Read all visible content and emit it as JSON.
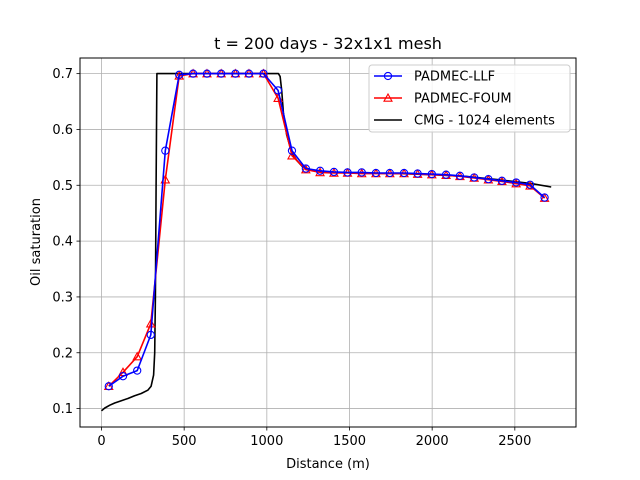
{
  "chart_data": {
    "type": "line",
    "title": "t = 200 days - 32x1x1 mesh",
    "xlabel": "Distance (m)",
    "ylabel": "Oil saturation",
    "xlim": [
      -130,
      2870
    ],
    "ylim": [
      0.067,
      0.728
    ],
    "xticks": [
      0,
      500,
      1000,
      1500,
      2000,
      2500
    ],
    "yticks": [
      0.1,
      0.2,
      0.3,
      0.4,
      0.5,
      0.6,
      0.7
    ],
    "xtick_labels": [
      "0",
      "500",
      "1000",
      "1500",
      "2000",
      "2500"
    ],
    "ytick_labels": [
      "0.1",
      "0.2",
      "0.3",
      "0.4",
      "0.5",
      "0.6",
      "0.7"
    ],
    "grid": true,
    "legend_position": "top-right",
    "series": [
      {
        "name": "PADMEC-LLF",
        "color": "#0000ff",
        "marker": "circle",
        "x": [
          44,
          130,
          216,
          298,
          386,
          470,
          554,
          638,
          724,
          810,
          892,
          980,
          1068,
          1152,
          1236,
          1322,
          1406,
          1488,
          1574,
          1660,
          1744,
          1830,
          1912,
          1998,
          2084,
          2168,
          2254,
          2340,
          2422,
          2508,
          2592,
          2680
        ],
        "y": [
          0.14,
          0.158,
          0.168,
          0.232,
          0.562,
          0.698,
          0.7,
          0.7,
          0.7,
          0.7,
          0.7,
          0.7,
          0.67,
          0.562,
          0.53,
          0.526,
          0.524,
          0.523,
          0.523,
          0.522,
          0.522,
          0.522,
          0.521,
          0.52,
          0.519,
          0.517,
          0.514,
          0.511,
          0.508,
          0.505,
          0.501,
          0.478
        ]
      },
      {
        "name": "PADMEC-FOUM",
        "color": "#ff0000",
        "marker": "triangle",
        "x": [
          44,
          130,
          216,
          298,
          386,
          470,
          554,
          638,
          724,
          810,
          892,
          980,
          1068,
          1152,
          1236,
          1322,
          1406,
          1488,
          1574,
          1660,
          1744,
          1830,
          1912,
          1998,
          2084,
          2168,
          2254,
          2340,
          2422,
          2508,
          2592,
          2680
        ],
        "y": [
          0.14,
          0.165,
          0.193,
          0.252,
          0.51,
          0.696,
          0.7,
          0.7,
          0.7,
          0.7,
          0.7,
          0.7,
          0.656,
          0.553,
          0.528,
          0.523,
          0.522,
          0.522,
          0.521,
          0.521,
          0.521,
          0.521,
          0.52,
          0.519,
          0.518,
          0.516,
          0.513,
          0.51,
          0.507,
          0.503,
          0.499,
          0.477
        ]
      },
      {
        "name": "CMG - 1024 elements",
        "color": "#000000",
        "marker": "none",
        "x": [
          0,
          20,
          50,
          80,
          120,
          160,
          200,
          240,
          280,
          300,
          315,
          322,
          326,
          330,
          335,
          400,
          600,
          800,
          1000,
          1050,
          1070,
          1080,
          1090,
          1100,
          1120,
          1150,
          1180,
          1220,
          1300,
          1400,
          1600,
          1800,
          2000,
          2200,
          2400,
          2600,
          2720
        ],
        "y": [
          0.096,
          0.101,
          0.106,
          0.11,
          0.114,
          0.118,
          0.123,
          0.127,
          0.133,
          0.14,
          0.16,
          0.2,
          0.3,
          0.5,
          0.7,
          0.7,
          0.7,
          0.7,
          0.7,
          0.7,
          0.7,
          0.695,
          0.67,
          0.63,
          0.59,
          0.56,
          0.545,
          0.532,
          0.525,
          0.523,
          0.522,
          0.521,
          0.519,
          0.516,
          0.51,
          0.503,
          0.497
        ]
      }
    ]
  }
}
